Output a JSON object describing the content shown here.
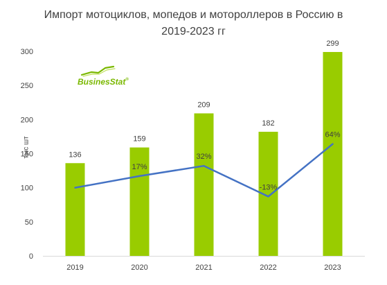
{
  "chart_data": {
    "type": "bar",
    "title": "Импорт мотоциклов, мопедов  и мотороллеров в Россию в 2019-2023 гг",
    "title_lines": [
      "Импорт мотоциклов, мопедов  и мотороллеров в Россию в",
      "2019-2023 гг"
    ],
    "ylabel": "тыс шт",
    "xlabel": "",
    "categories": [
      "2019",
      "2020",
      "2021",
      "2022",
      "2023"
    ],
    "values": [
      136,
      159,
      209,
      182,
      299
    ],
    "value_labels": [
      "136",
      "159",
      "209",
      "182",
      "299"
    ],
    "growth_series": {
      "type": "line",
      "values": [
        null,
        17,
        32,
        -13,
        64
      ],
      "labels": [
        "",
        "17%",
        "32%",
        "-13%",
        "64%"
      ],
      "secondary_axis_range": [
        -100,
        200
      ]
    },
    "ylim": [
      0,
      300
    ],
    "yticks": [
      "0",
      "50",
      "100",
      "150",
      "200",
      "250",
      "300"
    ],
    "grid": false,
    "legend": "none",
    "colors": {
      "bar": "#99CC00",
      "line": "#4472C4",
      "text": "#404040",
      "axis": "#D9D9D9"
    }
  },
  "watermark": {
    "text": "BusinesStat",
    "color": "#7AB800",
    "registered": "®"
  }
}
